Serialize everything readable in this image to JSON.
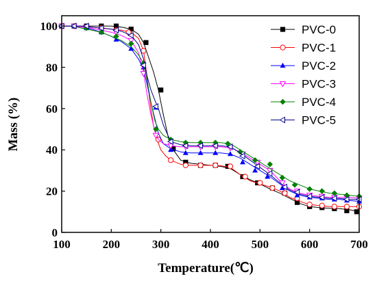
{
  "chart_data": {
    "type": "line",
    "title": "",
    "xlabel": "Temperature(℃)",
    "ylabel": "Mass (%)",
    "xlim": [
      100,
      700
    ],
    "ylim": [
      0,
      105
    ],
    "xticks": [
      "100",
      "200",
      "300",
      "400",
      "500",
      "600",
      "700"
    ],
    "yticks": [
      "0",
      "20",
      "40",
      "60",
      "80",
      "100"
    ],
    "grid": false,
    "legend_position": "top-right",
    "series": [
      {
        "name": "PVC-0",
        "color": "#000000",
        "marker": "square",
        "x": [
          100,
          110,
          120,
          140,
          160,
          180,
          200,
          220,
          240,
          255,
          265,
          275,
          285,
          295,
          305,
          315,
          325,
          340,
          360,
          380,
          400,
          420,
          440,
          460,
          480,
          500,
          520,
          540,
          560,
          580,
          600,
          620,
          640,
          660,
          680,
          700
        ],
        "y": [
          100,
          100,
          100,
          100,
          100,
          100,
          100,
          99.5,
          98.5,
          96,
          92,
          85,
          78,
          69,
          57,
          46,
          40,
          35,
          33.5,
          33,
          32.5,
          32,
          31,
          28,
          25.5,
          23.5,
          21,
          19,
          16.5,
          14,
          12.5,
          12,
          11.7,
          11.5,
          11,
          10
        ],
        "markers_x": [
          100,
          125,
          150,
          180,
          210,
          240,
          270,
          300,
          325,
          350,
          380,
          410,
          435,
          465,
          495,
          525,
          550,
          575,
          600,
          625,
          650,
          675,
          695
        ],
        "markers_y": [
          100,
          100,
          100,
          100,
          100,
          98.5,
          92,
          69,
          40.5,
          34,
          32.5,
          32.5,
          32,
          27,
          24,
          21.5,
          19,
          14.5,
          12.5,
          12,
          11.5,
          10.5,
          10
        ]
      },
      {
        "name": "PVC-1",
        "color": "#ff0000",
        "marker": "circle-open",
        "x": [
          100,
          120,
          140,
          160,
          180,
          200,
          220,
          240,
          255,
          265,
          272,
          278,
          285,
          292,
          300,
          310,
          320,
          340,
          360,
          380,
          400,
          420,
          440,
          460,
          480,
          500,
          520,
          540,
          560,
          580,
          600,
          620,
          640,
          660,
          680,
          700
        ],
        "y": [
          100,
          100,
          100,
          99.5,
          99,
          98.5,
          98,
          97,
          94,
          88,
          76,
          63,
          52,
          45,
          40,
          37,
          35,
          33,
          32.5,
          32.5,
          32.5,
          32.3,
          31.5,
          28,
          25,
          23.5,
          22,
          20,
          17,
          15,
          13.5,
          13,
          12.5,
          12.5,
          12.5,
          12.5
        ],
        "markers_x": [
          100,
          125,
          150,
          180,
          210,
          235,
          265,
          295,
          320,
          350,
          380,
          410,
          440,
          470,
          500,
          525,
          550,
          575,
          600,
          625,
          650,
          675,
          700
        ],
        "markers_y": [
          100,
          100,
          99.5,
          99,
          98,
          97,
          88,
          45,
          35,
          32.5,
          32.5,
          32.5,
          32,
          27,
          24,
          21.5,
          19,
          16.5,
          13.5,
          13,
          12.5,
          12.5,
          12.5
        ]
      },
      {
        "name": "PVC-2",
        "color": "#0000ff",
        "marker": "triangle-up",
        "x": [
          100,
          120,
          140,
          160,
          180,
          200,
          220,
          240,
          255,
          265,
          272,
          280,
          288,
          295,
          305,
          320,
          340,
          360,
          380,
          400,
          420,
          440,
          460,
          480,
          500,
          520,
          540,
          560,
          580,
          600,
          620,
          640,
          660,
          680,
          700
        ],
        "y": [
          100,
          100,
          99.5,
          98.5,
          97,
          95,
          92.5,
          89,
          84,
          79,
          72,
          63,
          55,
          48,
          43,
          40.5,
          39,
          38.5,
          38.5,
          38.5,
          38.5,
          38,
          36,
          33,
          30,
          27,
          23.5,
          20,
          18,
          17,
          16.5,
          16,
          16,
          15.5,
          15
        ],
        "markers_x": [
          100,
          125,
          150,
          180,
          210,
          240,
          265,
          290,
          320,
          350,
          380,
          410,
          440,
          465,
          490,
          515,
          545,
          575,
          600,
          625,
          650,
          675,
          700
        ],
        "markers_y": [
          100,
          100,
          99,
          97,
          93.5,
          89,
          80,
          60.5,
          40,
          38.5,
          38.5,
          38.5,
          38,
          34,
          30,
          27,
          21.5,
          18,
          17,
          16.5,
          16,
          15.5,
          15
        ]
      },
      {
        "name": "PVC-3",
        "color": "#ff00ff",
        "marker": "triangle-down-open",
        "x": [
          100,
          120,
          140,
          160,
          180,
          200,
          220,
          240,
          255,
          265,
          272,
          280,
          288,
          295,
          305,
          320,
          340,
          360,
          380,
          400,
          420,
          440,
          460,
          480,
          500,
          520,
          540,
          560,
          580,
          600,
          620,
          640,
          660,
          680,
          700
        ],
        "y": [
          100,
          100,
          99.5,
          99,
          98,
          97,
          95.5,
          93,
          87,
          78,
          67,
          57,
          49,
          45,
          43,
          42,
          41.5,
          41.5,
          41.5,
          41.5,
          41.5,
          41,
          39,
          36,
          33,
          30,
          25,
          21,
          19,
          18,
          17.5,
          17,
          17,
          17,
          16.5
        ],
        "markers_x": [
          100,
          125,
          150,
          180,
          210,
          240,
          265,
          290,
          320,
          350,
          380,
          410,
          440,
          465,
          495,
          520,
          545,
          575,
          600,
          625,
          650,
          675,
          700
        ],
        "markers_y": [
          100,
          100,
          99.5,
          98,
          97,
          93,
          77,
          47,
          42,
          41.5,
          41.5,
          41.5,
          41,
          38,
          34,
          30,
          24,
          20,
          18,
          17.5,
          17,
          17,
          16.5
        ]
      },
      {
        "name": "PVC-4",
        "color": "#008000",
        "marker": "diamond",
        "x": [
          100,
          120,
          140,
          160,
          180,
          200,
          220,
          240,
          255,
          265,
          272,
          280,
          288,
          295,
          305,
          320,
          340,
          360,
          380,
          400,
          420,
          440,
          460,
          480,
          500,
          520,
          540,
          560,
          580,
          600,
          620,
          640,
          660,
          680,
          700
        ],
        "y": [
          100,
          100,
          99,
          98,
          97,
          95,
          93,
          90,
          86,
          82,
          74,
          63,
          54,
          50,
          47,
          45,
          44,
          43.5,
          43.5,
          43.5,
          43.5,
          43,
          40,
          37,
          34,
          31,
          28,
          25,
          23,
          21,
          20,
          19,
          18.5,
          18,
          17.5
        ],
        "markers_x": [
          100,
          125,
          150,
          180,
          210,
          240,
          265,
          290,
          320,
          350,
          380,
          410,
          435,
          460,
          490,
          520,
          545,
          570,
          600,
          625,
          650,
          675,
          700
        ],
        "markers_y": [
          100,
          100,
          99,
          97,
          95,
          91.5,
          82,
          50,
          45,
          43.5,
          43.5,
          43.5,
          43,
          39,
          35,
          33,
          26.5,
          23,
          21,
          20,
          19,
          18,
          17.5
        ]
      },
      {
        "name": "PVC-5",
        "color": "#00008b",
        "marker": "triangle-left-open",
        "x": [
          100,
          120,
          140,
          160,
          180,
          200,
          220,
          240,
          255,
          265,
          272,
          280,
          288,
          295,
          305,
          320,
          340,
          360,
          380,
          400,
          420,
          440,
          460,
          480,
          500,
          520,
          540,
          560,
          580,
          600,
          620,
          640,
          660,
          680,
          700
        ],
        "y": [
          100,
          100,
          100,
          99.5,
          99,
          98.5,
          97.5,
          95.5,
          91,
          84,
          76,
          69,
          64,
          60,
          52,
          44,
          42.5,
          42,
          42,
          42,
          42,
          41.5,
          38.5,
          35,
          31.5,
          28,
          24,
          20.5,
          18.5,
          17.5,
          17,
          16.5,
          16.5,
          16,
          16
        ],
        "markers_x": [
          100,
          125,
          150,
          180,
          210,
          240,
          265,
          290,
          320,
          350,
          380,
          410,
          440,
          465,
          495,
          520,
          550,
          575,
          600,
          625,
          650,
          675,
          700
        ],
        "markers_y": [
          100,
          100,
          100,
          99,
          98,
          95.5,
          81,
          61,
          44,
          42,
          42,
          42,
          41.5,
          37,
          32,
          28.5,
          22,
          19.5,
          17.5,
          17,
          16.5,
          16,
          16
        ]
      }
    ]
  }
}
